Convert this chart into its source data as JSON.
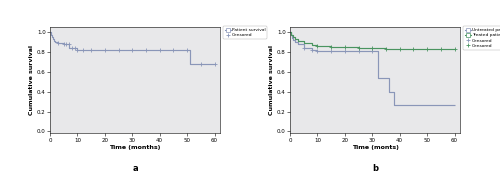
{
  "panel_a": {
    "title": "a",
    "xlabel": "Time (months)",
    "ylabel": "Cumulative survival",
    "xlim": [
      0,
      62
    ],
    "ylim": [
      -0.02,
      1.05
    ],
    "xticks": [
      0,
      10,
      20,
      30,
      40,
      50,
      60
    ],
    "yticks": [
      0.0,
      0.2,
      0.4,
      0.6,
      0.8,
      1.0
    ],
    "curve_color": "#8a96b8",
    "curve_x": [
      0,
      0.3,
      0.6,
      1.0,
      1.5,
      2.0,
      3.0,
      5.0,
      7.0,
      10.0,
      30.0,
      50.0,
      51.0,
      60.0
    ],
    "curve_y": [
      1.0,
      0.97,
      0.95,
      0.93,
      0.91,
      0.9,
      0.89,
      0.885,
      0.84,
      0.825,
      0.825,
      0.825,
      0.68,
      0.68
    ],
    "censor_x": [
      3,
      5,
      6,
      7,
      8,
      9,
      10,
      12,
      15,
      20,
      25,
      30,
      35,
      40,
      45,
      50,
      55,
      60
    ],
    "censor_y": [
      0.89,
      0.885,
      0.885,
      0.885,
      0.84,
      0.84,
      0.825,
      0.825,
      0.825,
      0.825,
      0.825,
      0.825,
      0.825,
      0.825,
      0.825,
      0.825,
      0.68,
      0.68
    ],
    "legend_labels": [
      "Patient survival",
      "Censored"
    ],
    "background_color": "#e8e8ea"
  },
  "panel_b": {
    "title": "b",
    "xlabel": "Time (monts)",
    "ylabel": "Cumulative survival",
    "xlim": [
      0,
      62
    ],
    "ylim": [
      -0.02,
      1.05
    ],
    "xticks": [
      0,
      10,
      20,
      30,
      40,
      50,
      60
    ],
    "yticks": [
      0.0,
      0.2,
      0.4,
      0.6,
      0.8,
      1.0
    ],
    "untreated_color": "#8a96b8",
    "treated_color": "#4a9460",
    "untreated_x": [
      0,
      0.3,
      0.6,
      1.0,
      2.0,
      3.0,
      5.0,
      8.0,
      10.0,
      30.0,
      32.0,
      36.0,
      38.0,
      60.0
    ],
    "untreated_y": [
      1.0,
      0.97,
      0.94,
      0.92,
      0.9,
      0.88,
      0.84,
      0.82,
      0.81,
      0.81,
      0.54,
      0.4,
      0.27,
      0.27
    ],
    "treated_x": [
      0,
      0.5,
      1.0,
      2.0,
      3.0,
      5.0,
      8.0,
      10.0,
      15.0,
      20.0,
      25.0,
      30.0,
      35.0,
      40.0,
      45.0,
      50.0,
      55.0,
      60.0
    ],
    "treated_y": [
      1.0,
      0.97,
      0.95,
      0.93,
      0.91,
      0.895,
      0.875,
      0.865,
      0.855,
      0.848,
      0.843,
      0.838,
      0.835,
      0.833,
      0.833,
      0.833,
      0.833,
      0.833
    ],
    "censor_untreated_x": [
      5,
      8,
      10,
      15,
      20,
      25,
      30
    ],
    "censor_untreated_y": [
      0.84,
      0.82,
      0.81,
      0.81,
      0.81,
      0.81,
      0.81
    ],
    "censor_treated_x": [
      10,
      15,
      20,
      25,
      30,
      35,
      40,
      45,
      50,
      55,
      60
    ],
    "censor_treated_y": [
      0.865,
      0.855,
      0.848,
      0.843,
      0.838,
      0.835,
      0.833,
      0.833,
      0.833,
      0.833,
      0.833
    ],
    "legend_labels": [
      "Untreated patients",
      "Treated patients",
      "Censored",
      "Censored"
    ],
    "background_color": "#e8e8ea"
  },
  "fig_width": 5.0,
  "fig_height": 1.71,
  "dpi": 100
}
